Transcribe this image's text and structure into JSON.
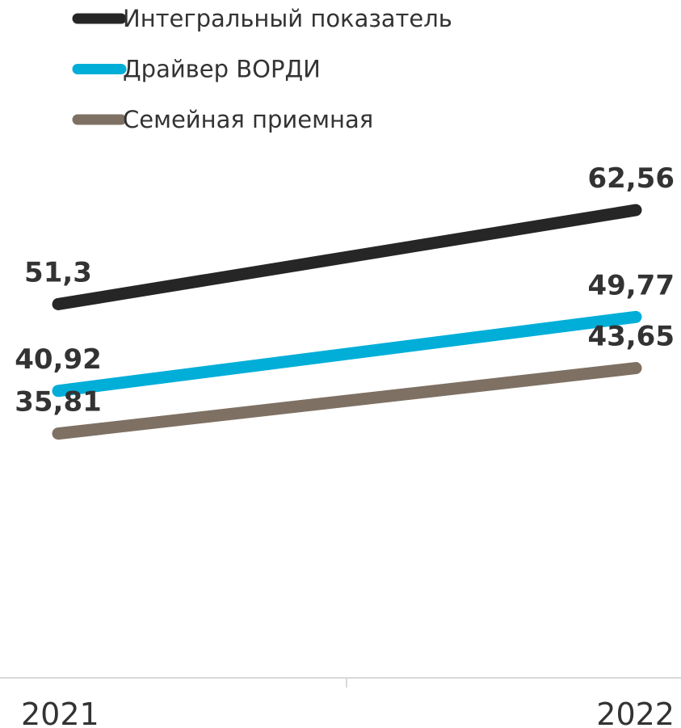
{
  "chart_data": {
    "type": "line",
    "categories": [
      "2021",
      "2022"
    ],
    "series": [
      {
        "name": "Интегральный показатель",
        "values": [
          51.3,
          62.56
        ],
        "labels": [
          "51,3",
          "62,56"
        ],
        "color": "#262626"
      },
      {
        "name": "Драйвер ВОРДИ",
        "values": [
          40.92,
          49.77
        ],
        "labels": [
          "40,92",
          "49,77"
        ],
        "color": "#00aed8"
      },
      {
        "name": "Семейная приемная",
        "values": [
          35.81,
          43.65
        ],
        "labels": [
          "35,81",
          "43,65"
        ],
        "color": "#7e7063"
      }
    ],
    "legend_position": "top-left",
    "grid": false,
    "ylim": [
      0,
      75
    ]
  }
}
